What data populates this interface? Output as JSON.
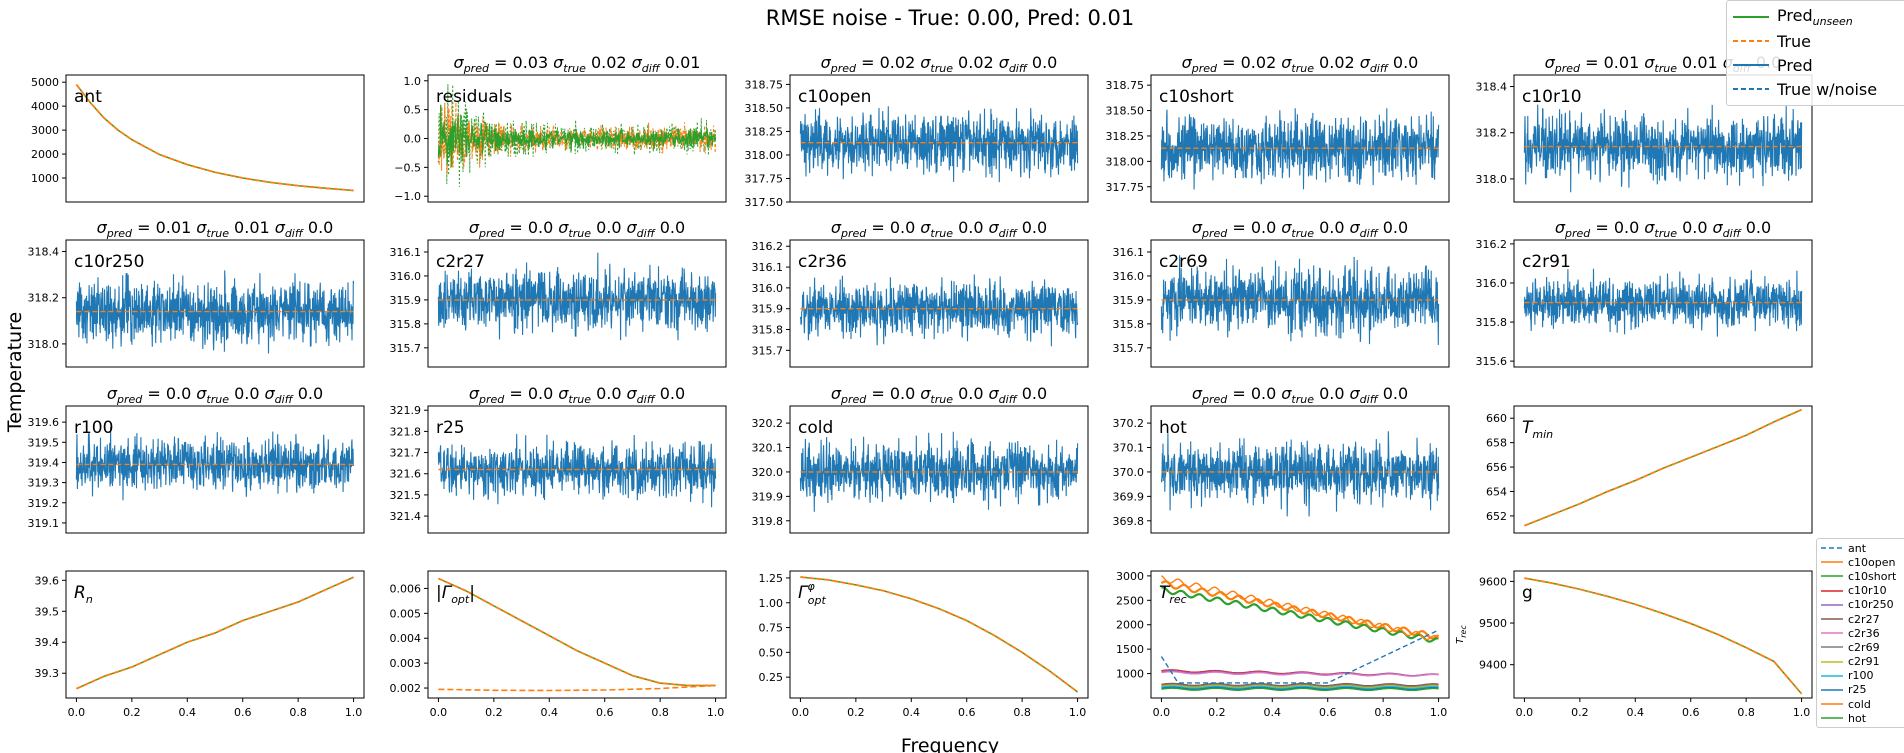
{
  "chart_data": {
    "title": "RMSE noise - True: 0.00, Pred: 0.01",
    "xlabel": "Frequency",
    "ylabel": "Temperature",
    "type": "line",
    "legend_main": [
      {
        "name": "Pred",
        "sub": "unseen",
        "color": "#2ca02c",
        "style": "solid"
      },
      {
        "name": "True",
        "sub": "",
        "color": "#ff7f0e",
        "style": "dashed"
      },
      {
        "name": "Pred",
        "sub": "",
        "color": "#1f77b4",
        "style": "solid"
      },
      {
        "name": "True w/noise",
        "sub": "",
        "color": "#1f77b4",
        "style": "dashed"
      }
    ],
    "legend_trec": [
      {
        "name": "ant",
        "color": "#1f77b4",
        "style": "dashed"
      },
      {
        "name": "c10open",
        "color": "#ff7f0e",
        "style": "solid"
      },
      {
        "name": "c10short",
        "color": "#2ca02c",
        "style": "solid"
      },
      {
        "name": "c10r10",
        "color": "#d62728",
        "style": "solid"
      },
      {
        "name": "c10r250",
        "color": "#9467bd",
        "style": "solid"
      },
      {
        "name": "c2r27",
        "color": "#8c564b",
        "style": "solid"
      },
      {
        "name": "c2r36",
        "color": "#e377c2",
        "style": "solid"
      },
      {
        "name": "c2r69",
        "color": "#7f7f7f",
        "style": "solid"
      },
      {
        "name": "c2r91",
        "color": "#bcbd22",
        "style": "solid"
      },
      {
        "name": "r100",
        "color": "#17becf",
        "style": "solid"
      },
      {
        "name": "r25",
        "color": "#1f77b4",
        "style": "solid"
      },
      {
        "name": "cold",
        "color": "#ff7f0e",
        "style": "solid"
      },
      {
        "name": "hot",
        "color": "#2ca02c",
        "style": "solid"
      }
    ],
    "x_ticks": [
      "0.0",
      "0.2",
      "0.4",
      "0.6",
      "0.8",
      "1.0"
    ],
    "panels": [
      {
        "label": "ant",
        "kind": "curve",
        "title": [],
        "ylim": [
          0,
          5300
        ],
        "yticks": [
          1000,
          2000,
          3000,
          4000,
          5000
        ],
        "ytick_labels": [
          "1000",
          "2000",
          "3000",
          "4000",
          "5000"
        ],
        "curve": {
          "x": [
            0,
            0.05,
            0.1,
            0.15,
            0.2,
            0.3,
            0.4,
            0.5,
            0.6,
            0.7,
            0.8,
            0.9,
            1.0
          ],
          "y": [
            4900,
            4150,
            3500,
            3000,
            2600,
            1980,
            1560,
            1240,
            1000,
            820,
            680,
            570,
            480
          ]
        }
      },
      {
        "label": "residuals",
        "kind": "residuals",
        "title": [
          "0.03",
          "0.02",
          "0.01"
        ],
        "ylim": [
          -1.1,
          1.1
        ],
        "yticks": [
          -1.0,
          -0.5,
          0.0,
          0.5,
          1.0
        ],
        "ytick_labels": [
          "−1.0",
          "−0.5",
          "0.0",
          "0.5",
          "1.0"
        ]
      },
      {
        "label": "c10open",
        "kind": "noise",
        "title": [
          "0.02",
          "0.02",
          "0.0"
        ],
        "ylim": [
          317.5,
          318.85
        ],
        "mean": 318.13,
        "amp": 0.37,
        "yticks": [
          317.5,
          317.75,
          318.0,
          318.25,
          318.5,
          318.75
        ],
        "ytick_labels": [
          "317.50",
          "317.75",
          "318.00",
          "318.25",
          "318.50",
          "318.75"
        ]
      },
      {
        "label": "c10short",
        "kind": "noise",
        "title": [
          "0.02",
          "0.02",
          "0.0"
        ],
        "ylim": [
          317.6,
          318.85
        ],
        "mean": 318.13,
        "amp": 0.37,
        "yticks": [
          317.75,
          318.0,
          318.25,
          318.5,
          318.75
        ],
        "ytick_labels": [
          "317.75",
          "318.00",
          "318.25",
          "318.50",
          "318.75"
        ]
      },
      {
        "label": "c10r10",
        "kind": "noise",
        "title": [
          "0.01",
          "0.01",
          "0.0"
        ],
        "ylim": [
          317.9,
          318.45
        ],
        "mean": 318.14,
        "amp": 0.16,
        "yticks": [
          318.0,
          318.2,
          318.4
        ],
        "ytick_labels": [
          "318.0",
          "318.2",
          "318.4"
        ]
      },
      {
        "label": "c10r250",
        "kind": "noise",
        "title": [
          "0.01",
          "0.01",
          "0.0"
        ],
        "ylim": [
          317.9,
          318.45
        ],
        "mean": 318.14,
        "amp": 0.16,
        "yticks": [
          318.0,
          318.2,
          318.4
        ],
        "ytick_labels": [
          "318.0",
          "318.2",
          "318.4"
        ]
      },
      {
        "label": "c2r27",
        "kind": "noise",
        "title": [
          "0.0",
          "0.0",
          "0.0"
        ],
        "ylim": [
          315.62,
          316.15
        ],
        "mean": 315.9,
        "amp": 0.15,
        "yticks": [
          315.7,
          315.8,
          315.9,
          316.0,
          316.1
        ],
        "ytick_labels": [
          "315.7",
          "315.8",
          "315.9",
          "316.0",
          "316.1"
        ]
      },
      {
        "label": "c2r36",
        "kind": "noise",
        "title": [
          "0.0",
          "0.0",
          "0.0"
        ],
        "ylim": [
          315.62,
          316.23
        ],
        "mean": 315.9,
        "amp": 0.15,
        "yticks": [
          315.7,
          315.8,
          315.9,
          316.0,
          316.1,
          316.2
        ],
        "ytick_labels": [
          "315.7",
          "315.8",
          "315.9",
          "316.0",
          "316.1",
          "316.2"
        ]
      },
      {
        "label": "c2r69",
        "kind": "noise",
        "title": [
          "0.0",
          "0.0",
          "0.0"
        ],
        "ylim": [
          315.62,
          316.15
        ],
        "mean": 315.9,
        "amp": 0.15,
        "yticks": [
          315.7,
          315.8,
          315.9,
          316.0,
          316.1
        ],
        "ytick_labels": [
          "315.7",
          "315.8",
          "315.9",
          "316.0",
          "316.1"
        ]
      },
      {
        "label": "c2r91",
        "kind": "noise",
        "title": [
          "0.0",
          "0.0",
          "0.0"
        ],
        "ylim": [
          315.57,
          316.22
        ],
        "mean": 315.9,
        "amp": 0.15,
        "yticks": [
          315.6,
          315.8,
          316.0,
          316.2
        ],
        "ytick_labels": [
          "315.6",
          "315.8",
          "316.0",
          "316.2"
        ]
      },
      {
        "label": "r100",
        "kind": "noise",
        "title": [
          "0.0",
          "0.0",
          "0.0"
        ],
        "ylim": [
          319.05,
          319.68
        ],
        "mean": 319.39,
        "amp": 0.15,
        "yticks": [
          319.1,
          319.2,
          319.3,
          319.4,
          319.5,
          319.6
        ],
        "ytick_labels": [
          "319.1",
          "319.2",
          "319.3",
          "319.4",
          "319.5",
          "319.6"
        ]
      },
      {
        "label": "r25",
        "kind": "noise",
        "title": [
          "0.0",
          "0.0",
          "0.0"
        ],
        "ylim": [
          321.32,
          321.92
        ],
        "mean": 321.62,
        "amp": 0.15,
        "yticks": [
          321.4,
          321.5,
          321.6,
          321.7,
          321.8,
          321.9
        ],
        "ytick_labels": [
          "321.4",
          "321.5",
          "321.6",
          "321.7",
          "321.8",
          "321.9"
        ]
      },
      {
        "label": "cold",
        "kind": "noise",
        "title": [
          "0.0",
          "0.0",
          "0.0"
        ],
        "ylim": [
          319.75,
          320.27
        ],
        "mean": 320.0,
        "amp": 0.14,
        "yticks": [
          319.8,
          319.9,
          320.0,
          320.1,
          320.2
        ],
        "ytick_labels": [
          "319.8",
          "319.9",
          "320.0",
          "320.1",
          "320.2"
        ]
      },
      {
        "label": "hot",
        "kind": "noise",
        "title": [
          "0.0",
          "0.0",
          "0.0"
        ],
        "ylim": [
          369.75,
          370.27
        ],
        "mean": 370.0,
        "amp": 0.14,
        "yticks": [
          369.8,
          369.9,
          370.0,
          370.1,
          370.2
        ],
        "ytick_labels": [
          "369.8",
          "369.9",
          "370.0",
          "370.1",
          "370.2"
        ]
      },
      {
        "label": "T_min",
        "label_main": "T",
        "label_sub": "min",
        "kind": "curve",
        "title": [],
        "ylim": [
          650.6,
          661.0
        ],
        "yticks": [
          652,
          654,
          656,
          658,
          660
        ],
        "ytick_labels": [
          "652",
          "654",
          "656",
          "658",
          "660"
        ],
        "curve": {
          "x": [
            0,
            0.1,
            0.2,
            0.3,
            0.4,
            0.5,
            0.6,
            0.7,
            0.8,
            0.9,
            1.0
          ],
          "y": [
            651.2,
            652.1,
            653.0,
            654.0,
            654.9,
            655.9,
            656.8,
            657.7,
            658.6,
            659.7,
            660.7
          ]
        }
      },
      {
        "label": "R_n",
        "label_main": "R",
        "label_sub": "n",
        "kind": "curve",
        "title": [],
        "ylim": [
          39.22,
          39.63
        ],
        "yticks": [
          39.3,
          39.4,
          39.5,
          39.6
        ],
        "ytick_labels": [
          "39.3",
          "39.4",
          "39.5",
          "39.6"
        ],
        "curve": {
          "x": [
            0,
            0.1,
            0.2,
            0.3,
            0.4,
            0.5,
            0.6,
            0.7,
            0.8,
            0.9,
            1.0
          ],
          "y": [
            39.25,
            39.29,
            39.32,
            39.36,
            39.4,
            39.43,
            39.47,
            39.5,
            39.53,
            39.57,
            39.61
          ]
        }
      },
      {
        "label": "|Γ_opt|",
        "label_main": "|Γ",
        "label_sub": "opt",
        "label_tail": "|",
        "kind": "gamma",
        "title": [],
        "ylim": [
          0.0016,
          0.0067
        ],
        "yticks": [
          0.002,
          0.003,
          0.004,
          0.005,
          0.006
        ],
        "ytick_labels": [
          "0.002",
          "0.003",
          "0.004",
          "0.005",
          "0.006"
        ],
        "curve": {
          "x": [
            0,
            0.1,
            0.2,
            0.3,
            0.4,
            0.5,
            0.6,
            0.7,
            0.8,
            0.9,
            1.0
          ],
          "y": [
            0.0064,
            0.0059,
            0.0053,
            0.0047,
            0.0041,
            0.0035,
            0.003,
            0.0025,
            0.0022,
            0.0021,
            0.0021
          ]
        },
        "curve2": {
          "x": [
            0,
            0.2,
            0.4,
            0.6,
            0.8,
            1.0
          ],
          "y": [
            0.00195,
            0.00191,
            0.0019,
            0.00192,
            0.00198,
            0.0021
          ]
        }
      },
      {
        "label": "Γ_opt^φ",
        "label_main": "Γ",
        "label_sub": "opt",
        "label_sup": "φ",
        "kind": "curve",
        "title": [],
        "ylim": [
          0.04,
          1.32
        ],
        "yticks": [
          0.25,
          0.5,
          0.75,
          1.0,
          1.25
        ],
        "ytick_labels": [
          "0.25",
          "0.50",
          "0.75",
          "1.00",
          "1.25"
        ],
        "curve": {
          "x": [
            0,
            0.1,
            0.2,
            0.3,
            0.4,
            0.5,
            0.6,
            0.7,
            0.8,
            0.9,
            1.0
          ],
          "y": [
            1.26,
            1.23,
            1.18,
            1.12,
            1.04,
            0.94,
            0.82,
            0.67,
            0.5,
            0.31,
            0.1
          ]
        }
      },
      {
        "label": "T_rec",
        "label_main": "T",
        "label_sub": "rec",
        "kind": "trec",
        "title": [],
        "ylim": [
          500,
          3100
        ],
        "side_ylabel": "T_rec",
        "yticks": [
          1000,
          1500,
          2000,
          2500,
          3000
        ],
        "ytick_labels": [
          "1000",
          "1500",
          "2000",
          "2500",
          "3000"
        ]
      },
      {
        "label": "g",
        "kind": "curve",
        "title": [],
        "ylim": [
          9320,
          9625
        ],
        "yticks": [
          9400,
          9500,
          9600
        ],
        "ytick_labels": [
          "9400",
          "9500",
          "9600"
        ],
        "curve": {
          "x": [
            0,
            0.1,
            0.2,
            0.3,
            0.4,
            0.5,
            0.6,
            0.7,
            0.8,
            0.9,
            1.0
          ],
          "y": [
            9608,
            9596,
            9581,
            9564,
            9545,
            9523,
            9499,
            9472,
            9441,
            9408,
            9330
          ]
        }
      }
    ]
  }
}
